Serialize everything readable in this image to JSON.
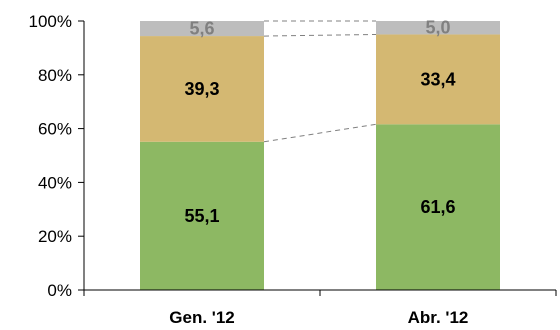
{
  "chart_data": {
    "type": "bar",
    "stacked": true,
    "normalized_100": true,
    "title": "",
    "xlabel": "",
    "ylabel": "",
    "ylim": [
      0,
      100
    ],
    "y_ticks": [
      0,
      20,
      40,
      60,
      80,
      100
    ],
    "y_tick_labels": [
      "0%",
      "20%",
      "40%",
      "60%",
      "80%",
      "100%"
    ],
    "grid": false,
    "legend": "none",
    "categories": [
      "Gen. '12",
      "Abr. '12"
    ],
    "series": [
      {
        "values": [
          55.1,
          61.6
        ],
        "labels": [
          "55,1",
          "61,6"
        ],
        "color": "#8db863",
        "label_color": "#000000"
      },
      {
        "values": [
          39.3,
          33.4
        ],
        "labels": [
          "39,3",
          "33,4"
        ],
        "color": "#d4b872",
        "label_color": "#000000"
      },
      {
        "values": [
          5.6,
          5.0
        ],
        "labels": [
          "5,6",
          "5,0"
        ],
        "color": "#bdbdbd",
        "label_color": "#808080"
      }
    ],
    "series_connector_lines": "dashed",
    "axis_color": "#000000",
    "connector_color": "#808080"
  }
}
